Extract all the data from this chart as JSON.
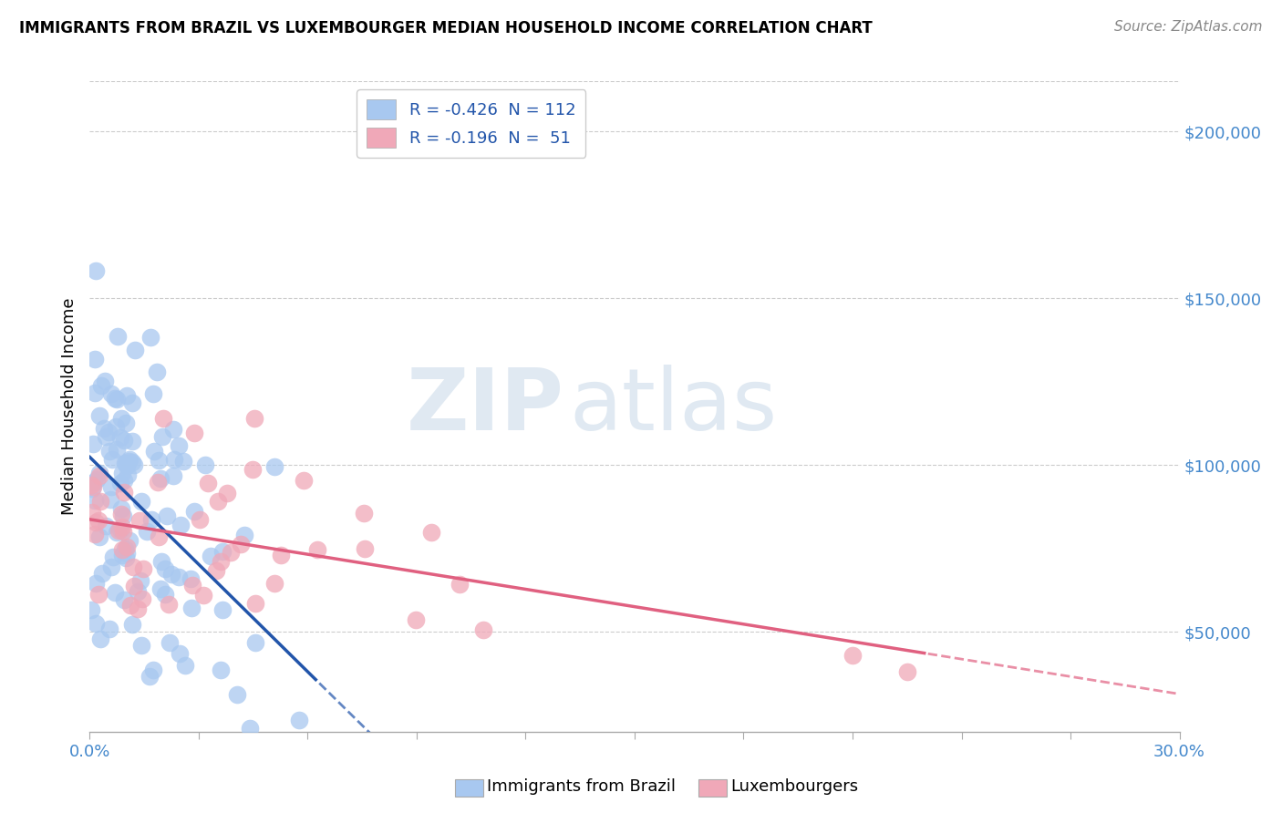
{
  "title": "IMMIGRANTS FROM BRAZIL VS LUXEMBOURGER MEDIAN HOUSEHOLD INCOME CORRELATION CHART",
  "source": "Source: ZipAtlas.com",
  "ylabel": "Median Household Income",
  "legend_1_label": "R = -0.426  N = 112",
  "legend_2_label": "R = -0.196  N =  51",
  "legend_1_color": "#a8c8f0",
  "legend_2_color": "#f0a8b8",
  "line_1_color": "#2255aa",
  "line_2_color": "#e06080",
  "ytick_labels": [
    "$50,000",
    "$100,000",
    "$150,000",
    "$200,000"
  ],
  "ytick_values": [
    50000,
    100000,
    150000,
    200000
  ],
  "xmin": 0.0,
  "xmax": 30.0,
  "ymin": 20000,
  "ymax": 215000,
  "watermark_zip": "ZIP",
  "watermark_atlas": "atlas",
  "background_color": "#ffffff",
  "brazil_r": -0.426,
  "brazil_n": 112,
  "lux_r": -0.196,
  "lux_n": 51,
  "bottom_label_1": "Immigrants from Brazil",
  "bottom_label_2": "Luxembourgers",
  "xtick_positions": [
    0,
    3,
    6,
    9,
    12,
    15,
    18,
    21,
    24,
    27,
    30
  ]
}
